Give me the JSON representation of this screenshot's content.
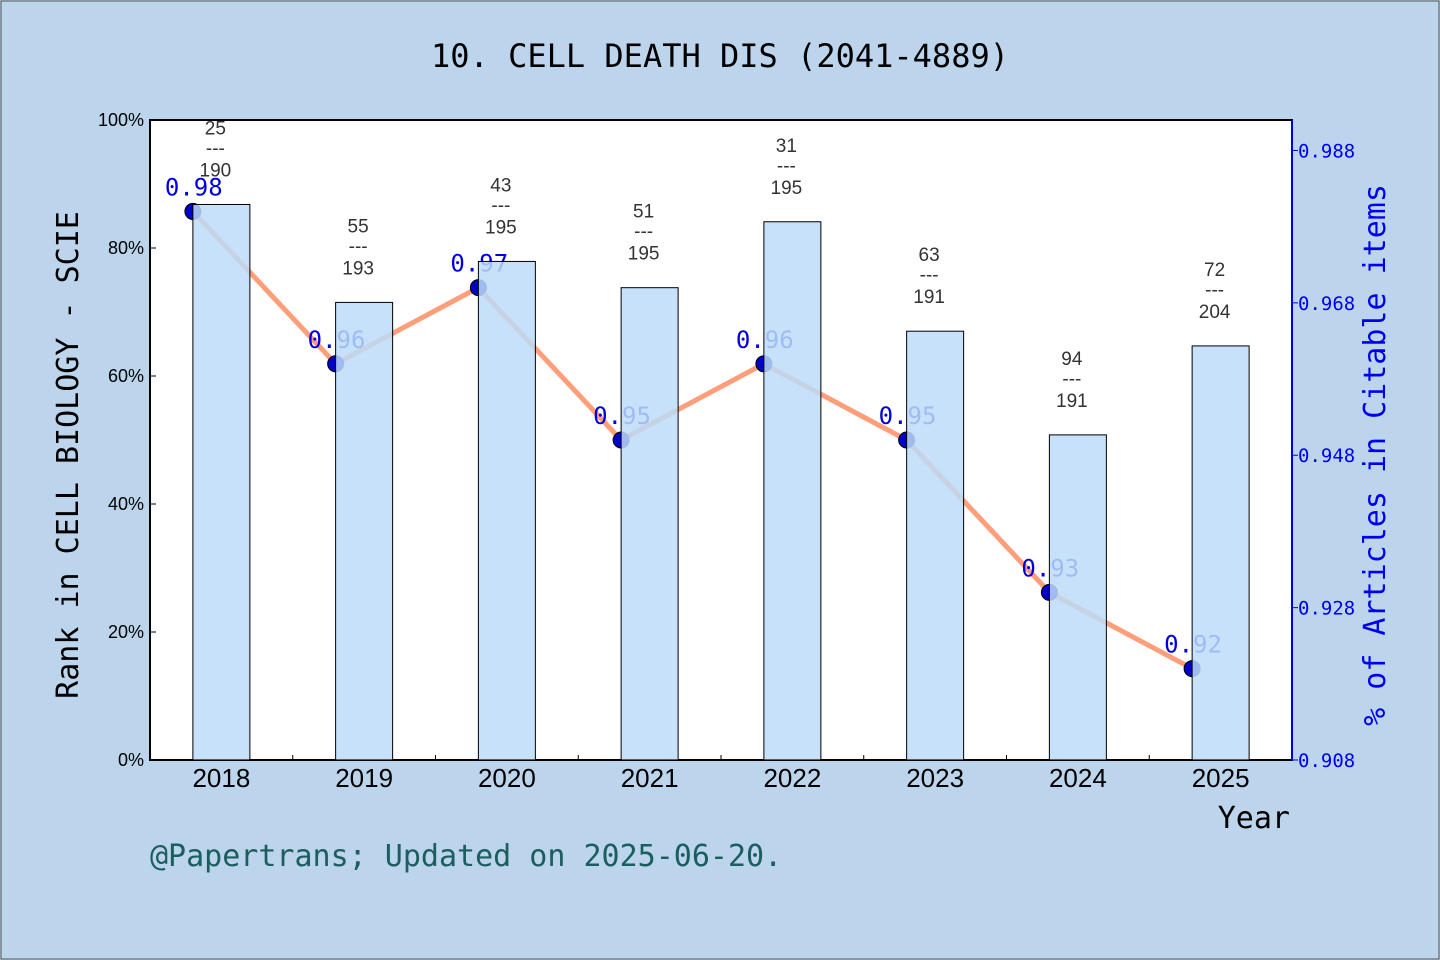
{
  "chart_data": {
    "type": "bar+line",
    "title": "10. CELL DEATH DIS (2041-4889)",
    "xlabel": "Year",
    "ylabel_left": "Rank in CELL BIOLOGY - SCIE",
    "ylabel_right": "% of Articles in Citable items",
    "categories": [
      "2018",
      "2019",
      "2020",
      "2021",
      "2022",
      "2023",
      "2024",
      "2025"
    ],
    "left_ticks": [
      "0%",
      "20%",
      "40%",
      "60%",
      "80%",
      "100%"
    ],
    "left_ylim": [
      0,
      100
    ],
    "right_ticks": [
      "0.908",
      "0.928",
      "0.948",
      "0.968",
      "0.988"
    ],
    "right_ylim": [
      0.908,
      0.992
    ],
    "bars": {
      "values": [
        86.8,
        71.5,
        77.9,
        73.8,
        84.1,
        67.0,
        50.8,
        64.7
      ],
      "rank": [
        "25",
        "55",
        "43",
        "51",
        "31",
        "63",
        "94",
        "72"
      ],
      "total": [
        "190",
        "193",
        "195",
        "195",
        "195",
        "191",
        "191",
        "204"
      ],
      "separator": "---",
      "color": "#c5e0f7"
    },
    "line": {
      "values": [
        0.98,
        0.96,
        0.97,
        0.95,
        0.96,
        0.95,
        0.93,
        0.92
      ],
      "labels": [
        "0.98",
        "0.96",
        "0.97",
        "0.95",
        "0.96",
        "0.95",
        "0.93",
        "0.92"
      ],
      "color": "#ff9e7a",
      "marker_color": "#0000cc"
    },
    "footer": "@Papertrans; Updated on 2025-06-20."
  }
}
